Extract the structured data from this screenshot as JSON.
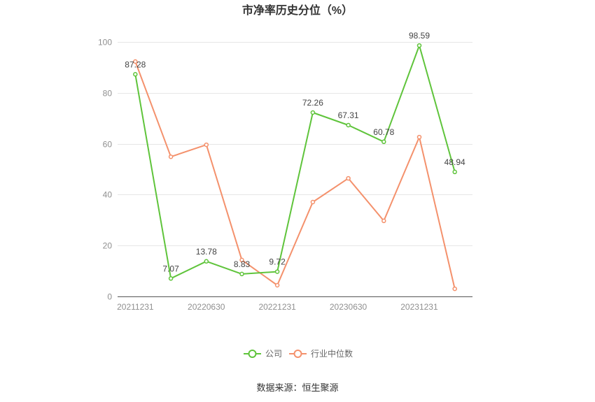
{
  "title": "市净率历史分位（%）",
  "source": "数据来源：恒生聚源",
  "chart_data": {
    "type": "line",
    "title": "市净率历史分位（%）",
    "categories": [
      "20211231",
      "",
      "20220630",
      "",
      "20221231",
      "",
      "20230630",
      "",
      "20231231",
      ""
    ],
    "ylim": [
      0,
      100
    ],
    "yticks": [
      0,
      20,
      40,
      60,
      80,
      100
    ],
    "grid": true,
    "legend": "bottom-center",
    "series": [
      {
        "name": "公司",
        "color": "#5fc43b",
        "data_labels": true,
        "values": [
          87.28,
          7.07,
          13.78,
          8.83,
          9.72,
          72.26,
          67.31,
          60.78,
          98.59,
          48.94
        ]
      },
      {
        "name": "行业中位数",
        "color": "#f4916c",
        "data_labels": false,
        "values": [
          92.3,
          54.9,
          59.6,
          14.3,
          4.4,
          37.1,
          46.4,
          29.7,
          62.6,
          3.0
        ]
      }
    ]
  }
}
